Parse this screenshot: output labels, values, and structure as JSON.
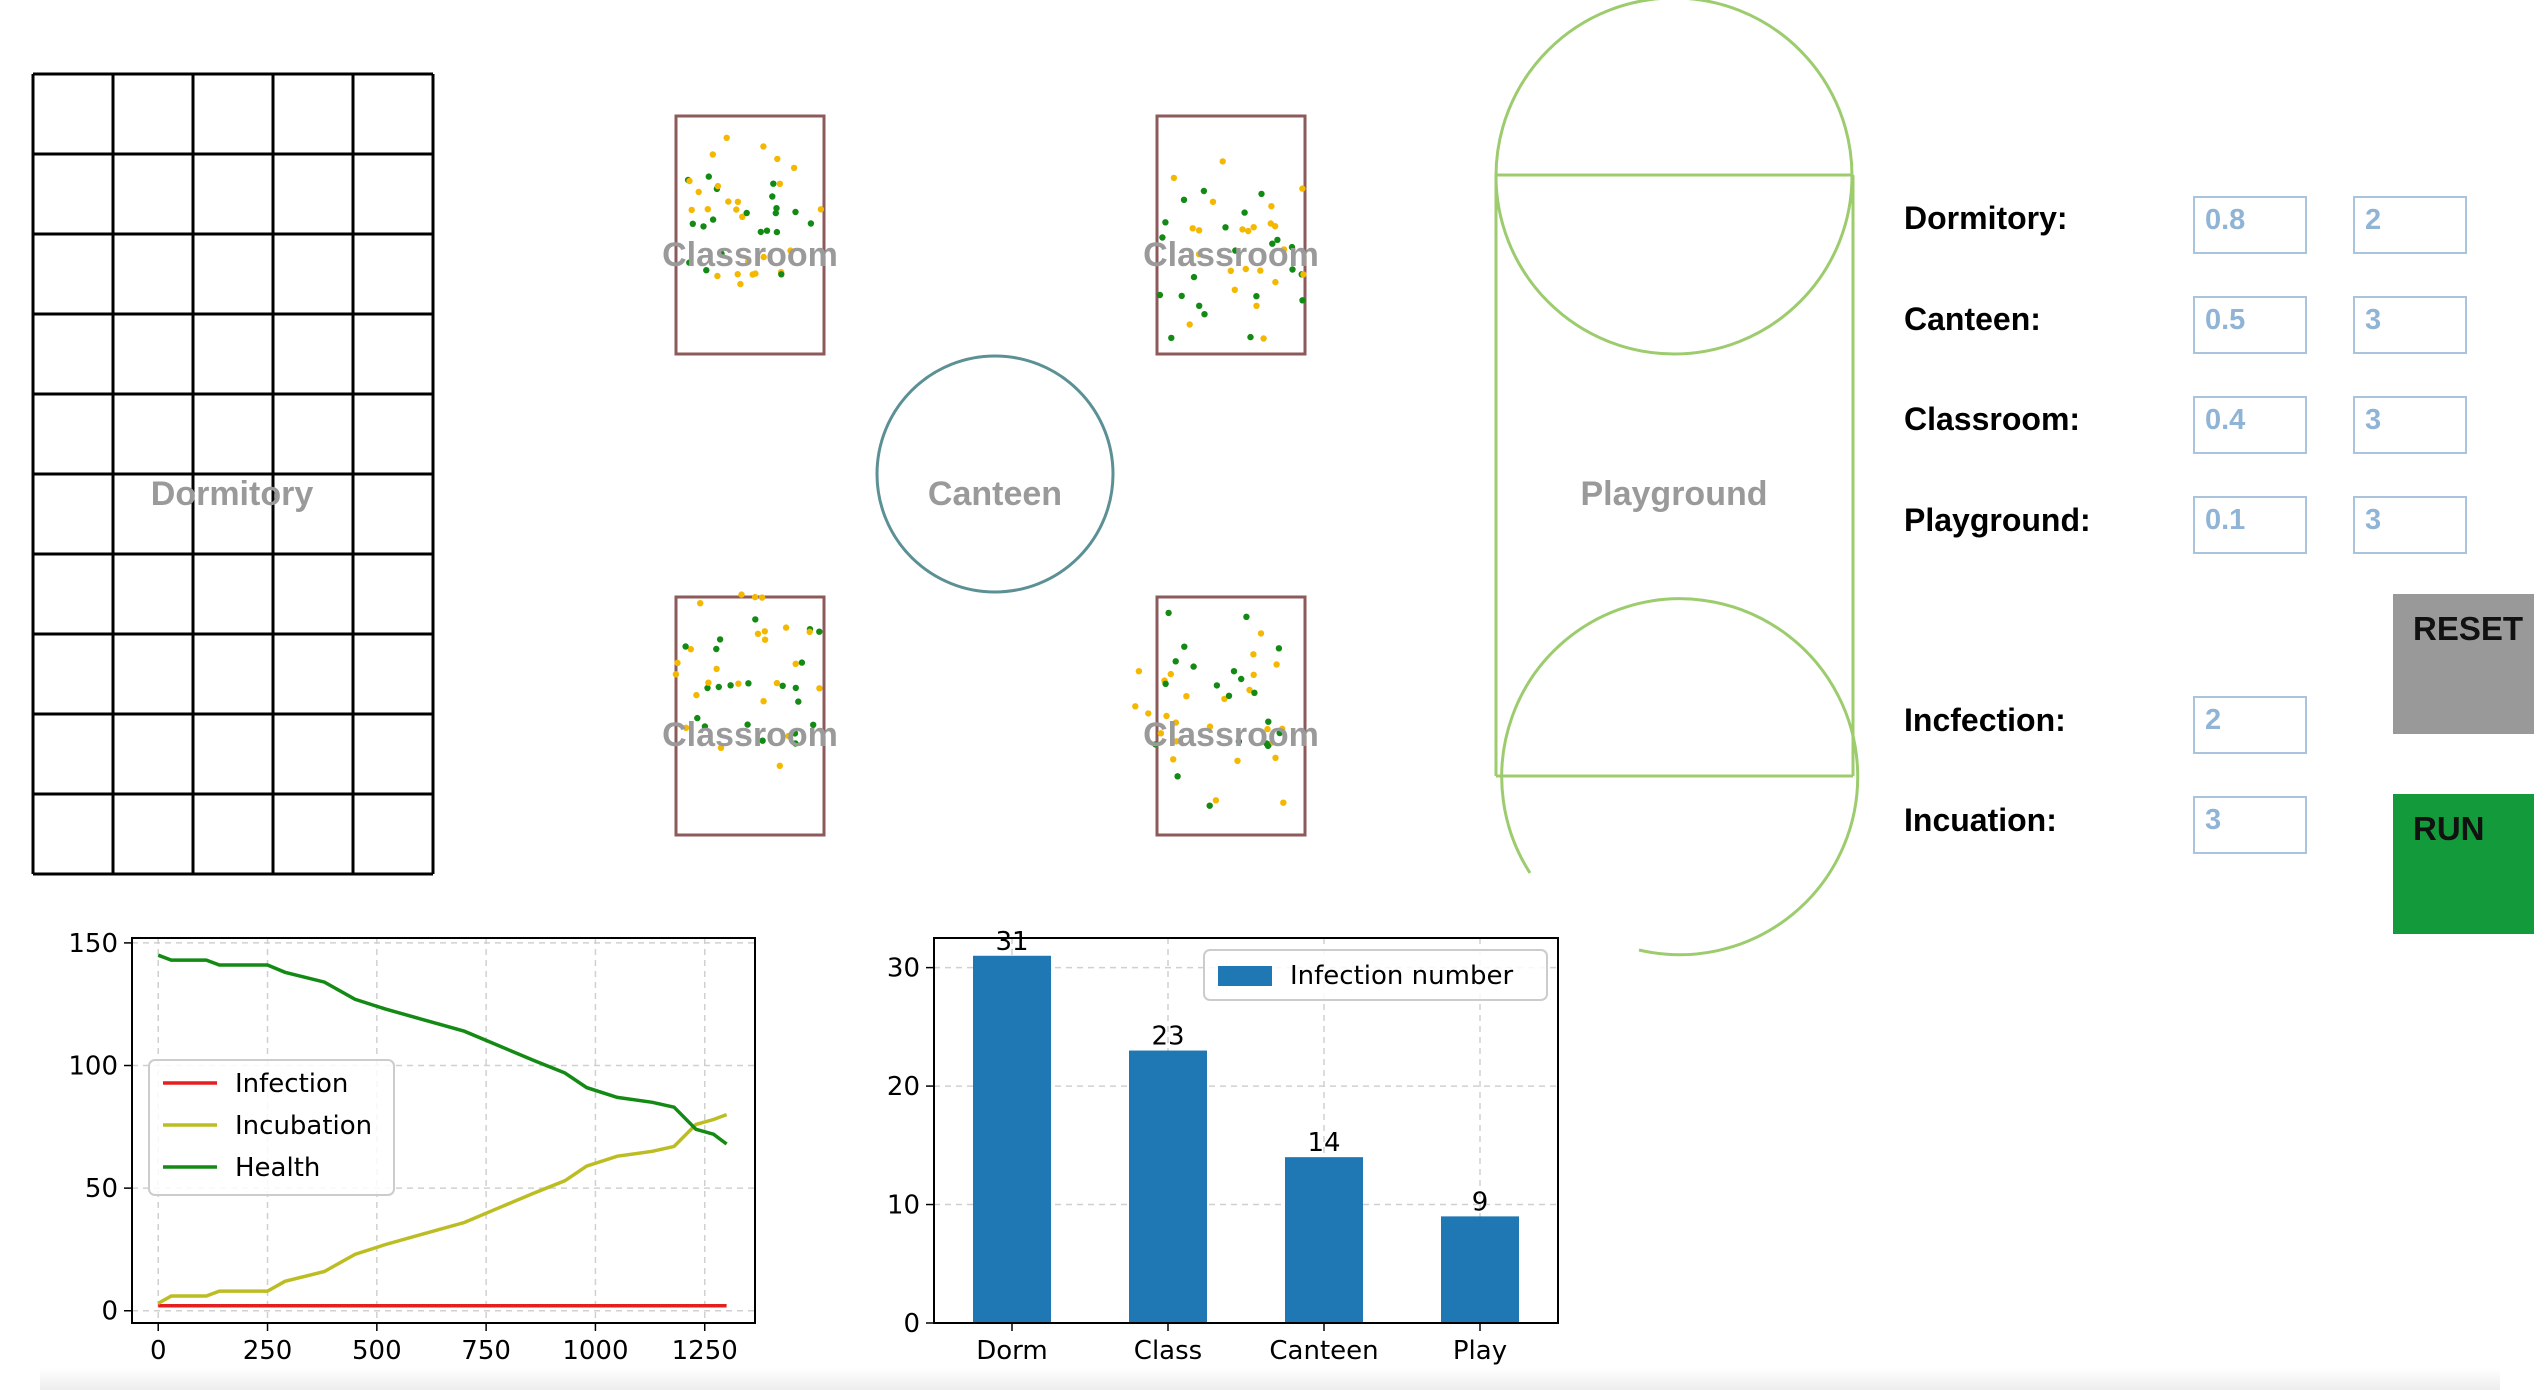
{
  "map": {
    "dormitory_label": "Dormitory",
    "canteen_label": "Canteen",
    "playground_label": "Playground",
    "classroom_label": "Classroom"
  },
  "params": {
    "rows": [
      {
        "label": "Dormitory:",
        "rate": "0.8",
        "count": "2"
      },
      {
        "label": "Canteen:",
        "rate": "0.5",
        "count": "3"
      },
      {
        "label": "Classroom:",
        "rate": "0.4",
        "count": "3"
      },
      {
        "label": "Playground:",
        "rate": "0.1",
        "count": "3"
      }
    ],
    "infection_label": "Incfection:",
    "infection_value": "2",
    "incubation_label": "Incuation:",
    "incubation_value": "3"
  },
  "buttons": {
    "reset": "RESET",
    "run": "RUN"
  },
  "colors": {
    "classroom_border": "#8d5a5a",
    "canteen_border": "#5b9094",
    "playground_border": "#9ccc6d",
    "label_gray": "#9a9a9a",
    "dot_yellow": "#f5b800",
    "dot_green": "#138a13",
    "reset_bg": "#999999",
    "run_bg": "#139a3a",
    "bar_blue": "#1f77b4",
    "infection": "#e51f1f",
    "incubation": "#bcbd22",
    "health": "#138a13"
  },
  "chart_data": [
    {
      "type": "line",
      "xlim": [
        -60,
        1365
      ],
      "ylim": [
        -5,
        152
      ],
      "xticks": [
        0,
        250,
        500,
        750,
        1000,
        1250
      ],
      "yticks": [
        0,
        50,
        100,
        150
      ],
      "grid": true,
      "legend": "center-left",
      "series": [
        {
          "name": "Infection",
          "color": "#e51f1f",
          "points": [
            [
              0,
              2
            ],
            [
              1300,
              2
            ]
          ]
        },
        {
          "name": "Incubation",
          "color": "#bcbd22",
          "points": [
            [
              0,
              3
            ],
            [
              30,
              6
            ],
            [
              110,
              6
            ],
            [
              140,
              8
            ],
            [
              250,
              8
            ],
            [
              290,
              12
            ],
            [
              380,
              16
            ],
            [
              450,
              23
            ],
            [
              520,
              27
            ],
            [
              600,
              31
            ],
            [
              700,
              36
            ],
            [
              780,
              42
            ],
            [
              860,
              48
            ],
            [
              930,
              53
            ],
            [
              980,
              59
            ],
            [
              1050,
              63
            ],
            [
              1130,
              65
            ],
            [
              1180,
              67
            ],
            [
              1230,
              76
            ],
            [
              1270,
              78
            ],
            [
              1300,
              80
            ]
          ]
        },
        {
          "name": "Health",
          "color": "#138a13",
          "points": [
            [
              0,
              145
            ],
            [
              30,
              143
            ],
            [
              110,
              143
            ],
            [
              140,
              141
            ],
            [
              250,
              141
            ],
            [
              290,
              138
            ],
            [
              380,
              134
            ],
            [
              450,
              127
            ],
            [
              520,
              123
            ],
            [
              600,
              119
            ],
            [
              700,
              114
            ],
            [
              780,
              108
            ],
            [
              860,
              102
            ],
            [
              930,
              97
            ],
            [
              980,
              91
            ],
            [
              1050,
              87
            ],
            [
              1130,
              85
            ],
            [
              1180,
              83
            ],
            [
              1230,
              74
            ],
            [
              1270,
              72
            ],
            [
              1300,
              68
            ]
          ]
        }
      ]
    },
    {
      "type": "bar",
      "categories": [
        "Dorm",
        "Class",
        "Canteen",
        "Play"
      ],
      "values": [
        31,
        23,
        14,
        9
      ],
      "ylim": [
        0,
        32.5
      ],
      "yticks": [
        0,
        10,
        20,
        30
      ],
      "grid": true,
      "legend": "top-right",
      "series_name": "Infection number"
    }
  ]
}
